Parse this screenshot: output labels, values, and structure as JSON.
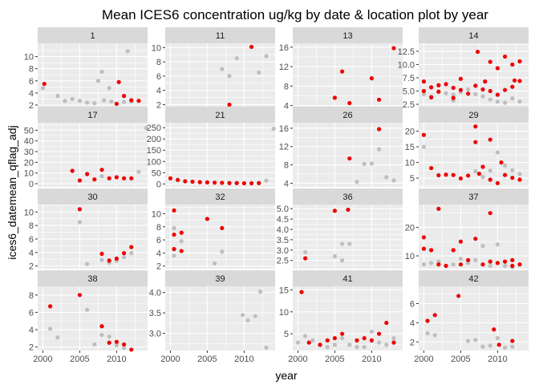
{
  "chart_data": {
    "type": "scatter",
    "title": "Mean ICES6 concentration ug/kg by date & location plot by year",
    "xlabel": "year",
    "ylabel": "ices6_datemean_qflag_adj",
    "x_ticks": [
      2000,
      2005,
      2010
    ],
    "xlim": [
      1999.3,
      2014.2
    ],
    "grid": true,
    "series_colors": {
      "highlighted": "#ee0000",
      "other": "#bebebe"
    },
    "panels": [
      {
        "label": "1",
        "ylim": [
          1.6,
          12.2
        ],
        "y_ticks": [
          2,
          4,
          6,
          8,
          10
        ],
        "red": [
          [
            2000.2,
            5.5
          ],
          [
            2010,
            2.2
          ],
          [
            2010.3,
            5.8
          ],
          [
            2011,
            3.5
          ],
          [
            2012,
            2.8
          ],
          [
            2013,
            2.7
          ]
        ],
        "grey": [
          [
            2000,
            4.8
          ],
          [
            2002,
            3.5
          ],
          [
            2003,
            2.7
          ],
          [
            2004,
            3.0
          ],
          [
            2005,
            2.7
          ],
          [
            2006,
            2.4
          ],
          [
            2007,
            2.3
          ],
          [
            2007.5,
            6.0
          ],
          [
            2008,
            7.5
          ],
          [
            2008.3,
            2.8
          ],
          [
            2009,
            4.8
          ],
          [
            2009.3,
            2.6
          ],
          [
            2011,
            2.5
          ],
          [
            2011.5,
            10.9
          ],
          [
            2012,
            2.6
          ]
        ]
      },
      {
        "label": "11",
        "ylim": [
          1.6,
          10.6
        ],
        "y_ticks": [
          2,
          4,
          6,
          8,
          10
        ],
        "red": [
          [
            2008,
            2.0
          ],
          [
            2011,
            10.1
          ]
        ],
        "grey": [
          [
            2007,
            7.0
          ],
          [
            2008,
            6.0
          ],
          [
            2009,
            8.5
          ],
          [
            2012,
            6.5
          ],
          [
            2013,
            8.8
          ]
        ]
      },
      {
        "label": "13",
        "ylim": [
          3.6,
          16.8
        ],
        "y_ticks": [
          4,
          8,
          12,
          16
        ],
        "red": [
          [
            2005,
            5.6
          ],
          [
            2006,
            11.0
          ],
          [
            2007,
            4.5
          ],
          [
            2010,
            9.6
          ],
          [
            2011,
            5.2
          ],
          [
            2013,
            15.8
          ]
        ],
        "grey": []
      },
      {
        "label": "14",
        "ylim": [
          1.9,
          14.0
        ],
        "y_ticks": [
          2.5,
          5.0,
          7.5,
          10.0,
          12.5
        ],
        "red": [
          [
            2000,
            5.0
          ],
          [
            2000,
            6.8
          ],
          [
            2001,
            3.8
          ],
          [
            2001,
            5.7
          ],
          [
            2002,
            6.1
          ],
          [
            2002,
            4.9
          ],
          [
            2003,
            6.3
          ],
          [
            2004,
            5.6
          ],
          [
            2004,
            3.7
          ],
          [
            2005,
            7.3
          ],
          [
            2005,
            5.2
          ],
          [
            2006,
            4.5
          ],
          [
            2007,
            6.0
          ],
          [
            2007.3,
            12.4
          ],
          [
            2008,
            5.3
          ],
          [
            2008.3,
            6.8
          ],
          [
            2009,
            10.5
          ],
          [
            2009,
            5.0
          ],
          [
            2010,
            9.3
          ],
          [
            2010,
            4.3
          ],
          [
            2011,
            11.5
          ],
          [
            2011,
            5.2
          ],
          [
            2012,
            10.0
          ],
          [
            2012,
            5.8
          ],
          [
            2012.3,
            7.0
          ],
          [
            2013,
            10.6
          ],
          [
            2013,
            6.9
          ]
        ],
        "grey": [
          [
            2000,
            4.4
          ],
          [
            2001,
            4.0
          ],
          [
            2002,
            4.8
          ],
          [
            2003,
            4.6
          ],
          [
            2004,
            4.3
          ],
          [
            2004,
            3.2
          ],
          [
            2005,
            4.8
          ],
          [
            2006,
            5.3
          ],
          [
            2007,
            4.4
          ],
          [
            2008,
            4.0
          ],
          [
            2009,
            3.4
          ],
          [
            2010,
            3.0
          ],
          [
            2011,
            2.8
          ],
          [
            2012,
            3.6
          ],
          [
            2013,
            3.0
          ]
        ]
      },
      {
        "label": "17",
        "ylim": [
          -3,
          57
        ],
        "y_ticks": [
          0,
          10,
          20,
          30,
          40,
          50
        ],
        "red": [
          [
            2004,
            12
          ],
          [
            2005,
            3
          ],
          [
            2006,
            9
          ],
          [
            2007,
            4
          ],
          [
            2008,
            13
          ],
          [
            2009,
            5
          ],
          [
            2010,
            6
          ],
          [
            2011,
            5
          ],
          [
            2012,
            5
          ]
        ],
        "grey": [
          [
            2008,
            7
          ],
          [
            2013,
            11
          ],
          [
            2014,
            52
          ]
        ]
      },
      {
        "label": "21",
        "ylim": [
          -13,
          272
        ],
        "y_ticks": [
          0,
          50,
          100,
          150,
          200,
          250
        ],
        "red": [
          [
            2000,
            25
          ],
          [
            2001,
            18
          ],
          [
            2002,
            12
          ],
          [
            2003,
            10
          ],
          [
            2004,
            8
          ],
          [
            2005,
            7
          ],
          [
            2006,
            6
          ],
          [
            2007,
            5
          ],
          [
            2008,
            4
          ],
          [
            2009,
            4
          ],
          [
            2010,
            3
          ],
          [
            2011,
            3
          ],
          [
            2012,
            4
          ]
        ],
        "grey": [
          [
            2013,
            15
          ],
          [
            2014,
            245
          ]
        ]
      },
      {
        "label": "26",
        "ylim": [
          3.2,
          17.2
        ],
        "y_ticks": [
          4,
          8,
          12,
          16
        ],
        "red": [
          [
            2007,
            9.4
          ],
          [
            2011,
            15.8
          ]
        ],
        "grey": [
          [
            2008,
            4.3
          ],
          [
            2009,
            8.2
          ],
          [
            2010,
            8.3
          ],
          [
            2011,
            11.4
          ],
          [
            2012,
            5.3
          ],
          [
            2013,
            4.6
          ]
        ]
      },
      {
        "label": "29",
        "ylim": [
          2.2,
          22.7
        ],
        "y_ticks": [
          5,
          10,
          15,
          20
        ],
        "red": [
          [
            2000,
            18.8
          ],
          [
            2001,
            8.2
          ],
          [
            2002,
            5.9
          ],
          [
            2003,
            6.1
          ],
          [
            2004,
            6.0
          ],
          [
            2005,
            4.9
          ],
          [
            2006,
            5.8
          ],
          [
            2007,
            21.5
          ],
          [
            2007,
            16.5
          ],
          [
            2007.5,
            6.4
          ],
          [
            2008,
            8.6
          ],
          [
            2009,
            17.3
          ],
          [
            2009,
            4.5
          ],
          [
            2010,
            3.4
          ],
          [
            2010.5,
            10.0
          ],
          [
            2011,
            6.0
          ],
          [
            2012,
            5.1
          ],
          [
            2013,
            4.5
          ]
        ],
        "grey": [
          [
            2000,
            15.0
          ],
          [
            2007,
            7.2
          ],
          [
            2008,
            5.4
          ],
          [
            2009,
            7.4
          ],
          [
            2010,
            13.2
          ],
          [
            2011,
            9.0
          ],
          [
            2012,
            7.5
          ],
          [
            2013,
            6.3
          ]
        ]
      },
      {
        "label": "30",
        "ylim": [
          1.6,
          11.1
        ],
        "y_ticks": [
          2,
          4,
          6,
          8,
          10
        ],
        "red": [
          [
            2005,
            10.4
          ],
          [
            2008,
            3.8
          ],
          [
            2009,
            2.8
          ],
          [
            2010,
            3.1
          ],
          [
            2011,
            3.9
          ],
          [
            2012,
            4.8
          ]
        ],
        "grey": [
          [
            2005,
            8.5
          ],
          [
            2006,
            2.3
          ],
          [
            2008,
            2.9
          ],
          [
            2009,
            2.5
          ],
          [
            2010,
            2.8
          ],
          [
            2011,
            3.3
          ],
          [
            2012,
            3.9
          ]
        ]
      },
      {
        "label": "32",
        "ylim": [
          1.6,
          11.4
        ],
        "y_ticks": [
          2,
          4,
          6,
          8,
          10
        ],
        "red": [
          [
            2000.5,
            10.5
          ],
          [
            2000.5,
            6.8
          ],
          [
            2000.5,
            4.6
          ],
          [
            2001.5,
            7.1
          ],
          [
            2001.5,
            4.3
          ],
          [
            2005,
            9.2
          ],
          [
            2007,
            7.8
          ]
        ],
        "grey": [
          [
            2000.5,
            7.8
          ],
          [
            2000.5,
            3.6
          ],
          [
            2001.5,
            5.8
          ],
          [
            2006,
            2.4
          ],
          [
            2007,
            4.2
          ]
        ]
      },
      {
        "label": "36",
        "ylim": [
          2.1,
          5.2
        ],
        "y_ticks": [
          2.5,
          3.0,
          3.5,
          4.0,
          4.5,
          5.0
        ],
        "red": [
          [
            2001,
            2.6
          ],
          [
            2005,
            4.9
          ],
          [
            2006.8,
            4.95
          ]
        ],
        "grey": [
          [
            2001,
            2.9
          ],
          [
            2005,
            2.7
          ],
          [
            2006,
            3.3
          ],
          [
            2006,
            2.5
          ],
          [
            2007,
            3.3
          ]
        ]
      },
      {
        "label": "37",
        "ylim": [
          5.5,
          28
        ],
        "y_ticks": [
          10,
          20
        ],
        "red": [
          [
            2000,
            16.5
          ],
          [
            2000,
            12.5
          ],
          [
            2001,
            12.0
          ],
          [
            2002,
            26.5
          ],
          [
            2002,
            7.0
          ],
          [
            2003,
            6.5
          ],
          [
            2004,
            12.0
          ],
          [
            2005,
            15.0
          ],
          [
            2005,
            7.0
          ],
          [
            2006,
            8.5
          ],
          [
            2007,
            16.0
          ],
          [
            2008,
            7.0
          ],
          [
            2009,
            25.0
          ],
          [
            2009,
            8.0
          ],
          [
            2010,
            7.5
          ],
          [
            2011,
            8.0
          ],
          [
            2012,
            8.5
          ],
          [
            2012,
            6.5
          ],
          [
            2013,
            7.0
          ]
        ],
        "grey": [
          [
            2000,
            7.0
          ],
          [
            2001,
            7.5
          ],
          [
            2002,
            8.0
          ],
          [
            2003,
            6.5
          ],
          [
            2004,
            7.0
          ],
          [
            2005,
            9.0
          ],
          [
            2006,
            7.5
          ],
          [
            2007,
            8.5
          ],
          [
            2008,
            13.5
          ],
          [
            2009,
            6.5
          ],
          [
            2010,
            14.0
          ],
          [
            2011,
            6.5
          ],
          [
            2012,
            6.0
          ],
          [
            2013,
            7.0
          ]
        ]
      },
      {
        "label": "38",
        "ylim": [
          1.6,
          9.0
        ],
        "y_ticks": [
          2,
          4,
          6,
          8
        ],
        "red": [
          [
            2001,
            6.7
          ],
          [
            2005,
            8.0
          ],
          [
            2008,
            4.4
          ],
          [
            2009,
            2.5
          ],
          [
            2010,
            2.6
          ],
          [
            2011,
            2.3
          ],
          [
            2012,
            1.7
          ]
        ],
        "grey": [
          [
            2001,
            4.1
          ],
          [
            2002,
            3.1
          ],
          [
            2006,
            6.3
          ],
          [
            2007,
            2.3
          ],
          [
            2008,
            3.4
          ],
          [
            2009,
            3.2
          ],
          [
            2010,
            2.2
          ],
          [
            2011,
            1.9
          ]
        ]
      },
      {
        "label": "39",
        "ylim": [
          2.58,
          4.15
        ],
        "y_ticks": [
          3.0,
          3.5,
          4.0
        ],
        "red": [],
        "grey": [
          [
            2009.8,
            3.45
          ],
          [
            2010.5,
            3.32
          ],
          [
            2011.5,
            3.42
          ],
          [
            2012.2,
            4.02
          ],
          [
            2013,
            2.65
          ]
        ]
      },
      {
        "label": "41",
        "ylim": [
          1.2,
          15.8
        ],
        "y_ticks": [
          5,
          10,
          15
        ],
        "red": [
          [
            2000.5,
            14.5
          ],
          [
            2001.5,
            3.0
          ],
          [
            2003,
            2.5
          ],
          [
            2004,
            3.5
          ],
          [
            2005,
            4.0
          ],
          [
            2006,
            5.0
          ],
          [
            2008,
            3.5
          ],
          [
            2009,
            4.0
          ],
          [
            2010,
            3.5
          ],
          [
            2011,
            5.0
          ],
          [
            2012,
            7.5
          ],
          [
            2013,
            3.0
          ]
        ],
        "grey": [
          [
            2000,
            3.0
          ],
          [
            2001,
            4.5
          ],
          [
            2002,
            3.5
          ],
          [
            2003,
            2.5
          ],
          [
            2004,
            2.0
          ],
          [
            2005,
            2.5
          ],
          [
            2006,
            4.0
          ],
          [
            2007,
            2.5
          ],
          [
            2008,
            2.0
          ],
          [
            2009,
            2.0
          ],
          [
            2010,
            5.5
          ],
          [
            2011,
            3.0
          ],
          [
            2012,
            2.5
          ],
          [
            2013,
            4.0
          ]
        ]
      },
      {
        "label": "42",
        "ylim": [
          1.1,
          7.8
        ],
        "y_ticks": [
          2,
          4,
          6
        ],
        "red": [
          [
            2000.5,
            4.2
          ],
          [
            2001.5,
            4.8
          ],
          [
            2004.7,
            6.8
          ],
          [
            2009.5,
            3.3
          ],
          [
            2010.2,
            1.7
          ],
          [
            2012,
            2.1
          ]
        ],
        "grey": [
          [
            2000.5,
            2.9
          ],
          [
            2001.5,
            2.7
          ],
          [
            2006,
            2.1
          ],
          [
            2007,
            2.2
          ],
          [
            2008,
            1.5
          ],
          [
            2009,
            1.6
          ],
          [
            2010,
            2.4
          ],
          [
            2011,
            1.4
          ],
          [
            2012,
            1.5
          ]
        ]
      }
    ]
  }
}
